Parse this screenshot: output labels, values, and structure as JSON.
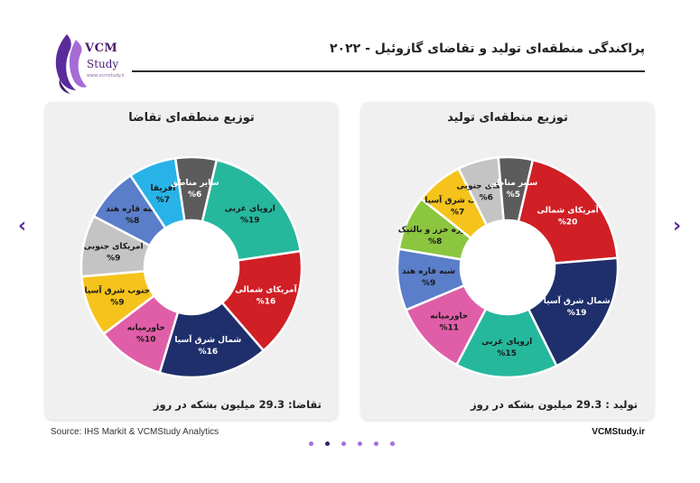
{
  "header": {
    "title": "پراکندگی منطقه‌ای تولید و تقاضای گازوئیل - ۲۰۲۲",
    "logo_name": "VCM",
    "logo_name2": "Study",
    "logo_sub": "www.vcmstudy.ir"
  },
  "footer": {
    "source": "Source: IHS Markit & VCMStudy Analytics",
    "site": "VCMStudy.ir"
  },
  "nav": {
    "prev": "‹",
    "next": "›"
  },
  "pagination": {
    "count": 6,
    "active_index": 1
  },
  "chart_data": [
    {
      "type": "pie",
      "donut": true,
      "title": "توزیع منطقه‌ای تقاضا",
      "footer": "تقاضا: 29.3 میلیون بشکه در روز",
      "slices": [
        {
          "label": "اروپای غربی",
          "value": 19,
          "color": "#26b89d"
        },
        {
          "label": "آمریکای شمالی",
          "value": 16,
          "color": "#d01f25"
        },
        {
          "label": "شمال شرق آسیا",
          "value": 16,
          "color": "#1f2f6b"
        },
        {
          "label": "خاورمیانه",
          "value": 10,
          "color": "#e05ea8"
        },
        {
          "label": "جنوب شرق آسیا",
          "value": 9,
          "color": "#f5c31c"
        },
        {
          "label": "آمریکای جنوبی",
          "value": 9,
          "color": "#c4c4c4"
        },
        {
          "label": "شبه قاره هند",
          "value": 8,
          "color": "#5a7ec9"
        },
        {
          "label": "آفریقا",
          "value": 7,
          "color": "#28b3e8"
        },
        {
          "label": "سایر مناطق",
          "value": 6,
          "color": "#5c5c5c"
        }
      ]
    },
    {
      "type": "pie",
      "donut": true,
      "title": "توزیع منطقه‌ای تولید",
      "footer": "تولید : 29.3 میلیون بشکه در روز",
      "slices": [
        {
          "label": "آمریکای شمالی",
          "value": 20,
          "color": "#d01f25"
        },
        {
          "label": "شمال شرق آسیا",
          "value": 19,
          "color": "#1f2f6b"
        },
        {
          "label": "اروپای غربی",
          "value": 15,
          "color": "#26b89d"
        },
        {
          "label": "خاورمیانه",
          "value": 11,
          "color": "#e05ea8"
        },
        {
          "label": "شبه قاره هند",
          "value": 9,
          "color": "#5a7ec9"
        },
        {
          "label": "حوزه خزر و بالتیک",
          "value": 8,
          "color": "#8cc63f"
        },
        {
          "label": "جنوب شرق آسیا",
          "value": 7,
          "color": "#f5c31c"
        },
        {
          "label": "آمریکای جنوبی",
          "value": 6,
          "color": "#c4c4c4"
        },
        {
          "label": "سایر مناطق",
          "value": 5,
          "color": "#5c5c5c"
        }
      ]
    }
  ]
}
